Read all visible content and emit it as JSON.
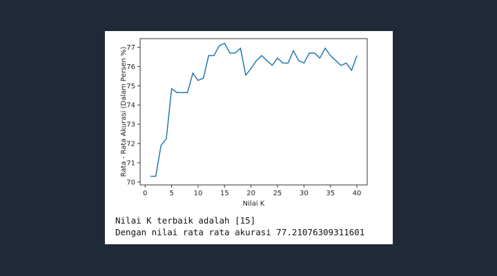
{
  "chart_data": {
    "type": "line",
    "xlabel": "Nilai K",
    "ylabel": "Rata - Rata Akurasi (Dalam Persen %)",
    "xlim": [
      -0.95,
      41.95
    ],
    "ylim": [
      69.85,
      77.45
    ],
    "x_ticks": [
      0,
      5,
      10,
      15,
      20,
      25,
      30,
      35,
      40
    ],
    "y_ticks": [
      70,
      71,
      72,
      73,
      74,
      75,
      76,
      77
    ],
    "grid": false,
    "series": [
      {
        "color": "#1f77b4",
        "x": [
          1,
          2,
          3,
          4,
          5,
          6,
          7,
          8,
          9,
          10,
          11,
          12,
          13,
          14,
          15,
          16,
          17,
          18,
          19,
          20,
          21,
          22,
          23,
          24,
          25,
          26,
          27,
          28,
          29,
          30,
          31,
          32,
          33,
          34,
          35,
          36,
          37,
          38,
          39,
          40
        ],
        "y": [
          70.3,
          70.3,
          71.9,
          72.25,
          74.85,
          74.65,
          74.65,
          74.65,
          75.65,
          75.28,
          75.4,
          76.57,
          76.57,
          77.08,
          77.21,
          76.7,
          76.7,
          76.95,
          75.55,
          75.9,
          76.3,
          76.57,
          76.31,
          76.06,
          76.44,
          76.18,
          76.18,
          76.82,
          76.31,
          76.18,
          76.7,
          76.7,
          76.44,
          76.95,
          76.57,
          76.31,
          76.06,
          76.18,
          75.8,
          76.57
        ]
      }
    ]
  },
  "output": {
    "line1": "Nilai K terbaik adalah [15]",
    "line2": "Dengan nilai rata rata akurasi 77.21076309311601"
  }
}
